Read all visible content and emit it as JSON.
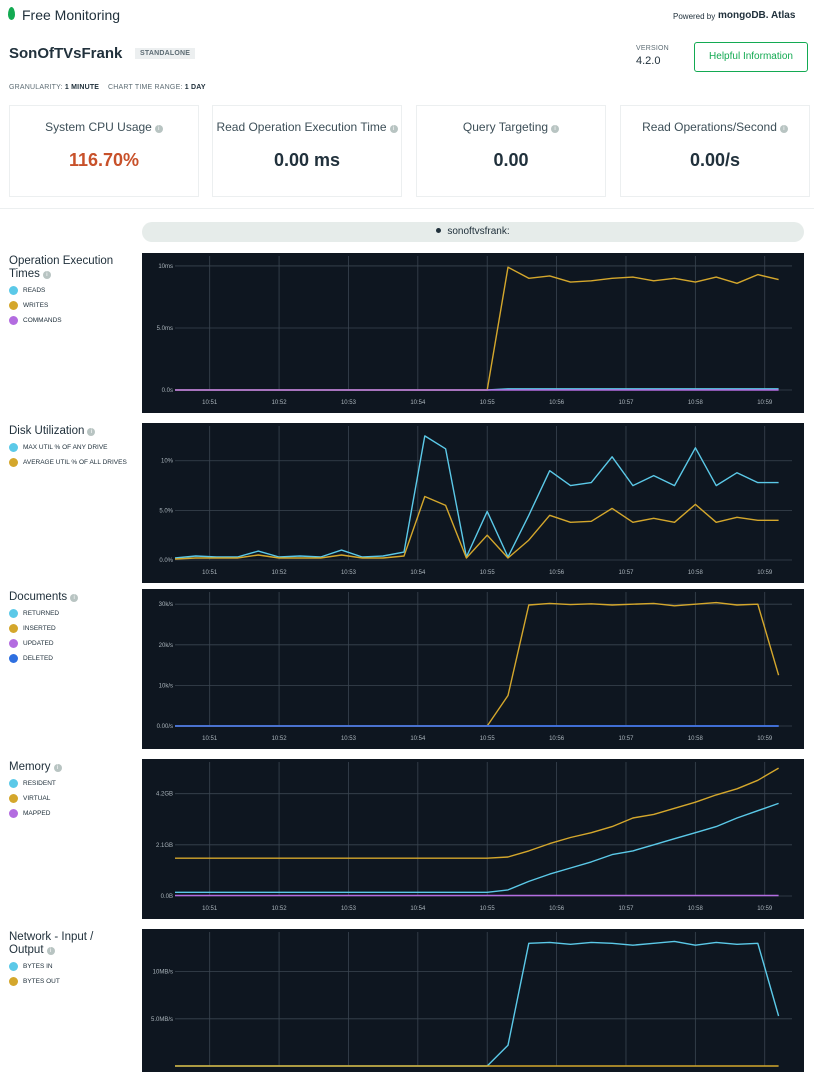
{
  "header": {
    "app": "Free Monitoring",
    "powered_by": "Powered by",
    "brand": "mongoDB. Atlas",
    "host": "SonOfTVsFrank",
    "badge": "STANDALONE",
    "version_label": "VERSION",
    "version": "4.2.0",
    "button": "Helpful Information",
    "granularity_label": "GRANULARITY:",
    "granularity": "1 MINUTE",
    "range_label": "CHART TIME RANGE:",
    "range": "1 DAY"
  },
  "metrics": [
    {
      "label": "System CPU Usage",
      "value": "116.70%"
    },
    {
      "label": "Read Operation Execution Time",
      "value": "0.00 ms"
    },
    {
      "label": "Query Targeting",
      "value": "0.00"
    },
    {
      "label": "Read Operations/Second",
      "value": "0.00/s"
    }
  ],
  "host_bar": "sonoftvsfrank:",
  "chart_data": [
    {
      "type": "line",
      "title": "Operation Execution Times",
      "x": [
        50.5,
        50.8,
        51.1,
        51.4,
        51.7,
        52.0,
        52.3,
        52.6,
        52.9,
        53.2,
        53.5,
        53.8,
        54.1,
        54.4,
        54.7,
        55.0,
        55.3,
        55.6,
        55.9,
        56.2,
        56.5,
        56.8,
        57.1,
        57.4,
        57.7,
        58.0,
        58.3,
        58.6,
        58.9,
        59.2
      ],
      "xlim": [
        50.5,
        59.22
      ],
      "xticks": [
        {
          "value": 51,
          "label": "10:51"
        },
        {
          "value": 52,
          "label": "10:52"
        },
        {
          "value": 53,
          "label": "10:53"
        },
        {
          "value": 54,
          "label": "10:54"
        },
        {
          "value": 55,
          "label": "10:55"
        },
        {
          "value": 56,
          "label": "10:56"
        },
        {
          "value": 57,
          "label": "10:57"
        },
        {
          "value": 58,
          "label": "10:58"
        },
        {
          "value": 59,
          "label": "10:59"
        }
      ],
      "ylim": [
        0,
        10.8
      ],
      "yticks": [
        {
          "value": 0,
          "label": "0.0s"
        },
        {
          "value": 5,
          "label": "5.0ms"
        },
        {
          "value": 10,
          "label": "10ms"
        }
      ],
      "grid": true,
      "series": [
        {
          "name": "READS",
          "color": "#5bc9e8",
          "values": [
            0,
            0,
            0,
            0,
            0,
            0,
            0,
            0,
            0,
            0,
            0,
            0,
            0,
            0,
            0,
            0,
            0.1,
            0.1,
            0.1,
            0.1,
            0.1,
            0.1,
            0.1,
            0.1,
            0.1,
            0.1,
            0.1,
            0.1,
            0.1,
            0.1
          ]
        },
        {
          "name": "WRITES",
          "color": "#d4a72c",
          "values": [
            0,
            0,
            0,
            0,
            0,
            0,
            0,
            0,
            0,
            0,
            0,
            0,
            0,
            0,
            0,
            0,
            9.9,
            9.0,
            9.2,
            8.7,
            8.8,
            9.0,
            9.1,
            8.8,
            9.0,
            8.7,
            9.1,
            8.6,
            9.3,
            8.9
          ]
        },
        {
          "name": "COMMANDS",
          "color": "#b36ce0",
          "values": [
            0,
            0,
            0,
            0,
            0,
            0,
            0,
            0,
            0,
            0,
            0,
            0,
            0,
            0,
            0,
            0,
            0,
            0,
            0,
            0,
            0,
            0,
            0,
            0,
            0,
            0,
            0,
            0,
            0,
            0
          ]
        }
      ]
    },
    {
      "type": "line",
      "title": "Disk Utilization",
      "x": [
        50.5,
        50.8,
        51.1,
        51.4,
        51.7,
        52.0,
        52.3,
        52.6,
        52.9,
        53.2,
        53.5,
        53.8,
        54.1,
        54.4,
        54.7,
        55.0,
        55.3,
        55.6,
        55.9,
        56.2,
        56.5,
        56.8,
        57.1,
        57.4,
        57.7,
        58.0,
        58.3,
        58.6,
        58.9,
        59.2
      ],
      "xlim": [
        50.5,
        59.22
      ],
      "xticks": [
        {
          "value": 51,
          "label": "10:51"
        },
        {
          "value": 52,
          "label": "10:52"
        },
        {
          "value": 53,
          "label": "10:53"
        },
        {
          "value": 54,
          "label": "10:54"
        },
        {
          "value": 55,
          "label": "10:55"
        },
        {
          "value": 56,
          "label": "10:56"
        },
        {
          "value": 57,
          "label": "10:57"
        },
        {
          "value": 58,
          "label": "10:58"
        },
        {
          "value": 59,
          "label": "10:59"
        }
      ],
      "ylim": [
        0,
        13.5
      ],
      "yticks": [
        {
          "value": 0,
          "label": "0.0%"
        },
        {
          "value": 5,
          "label": "5.0%"
        },
        {
          "value": 10,
          "label": "10%"
        }
      ],
      "grid": true,
      "series": [
        {
          "name": "MAX UTIL % OF ANY DRIVE",
          "color": "#5bc9e8",
          "values": [
            0.2,
            0.4,
            0.3,
            0.3,
            0.9,
            0.3,
            0.4,
            0.3,
            1.0,
            0.3,
            0.4,
            0.8,
            12.5,
            11.2,
            0.3,
            4.9,
            0.3,
            4.5,
            9.0,
            7.5,
            7.8,
            10.4,
            7.5,
            8.5,
            7.5,
            11.3,
            7.5,
            8.8,
            7.8,
            7.8
          ]
        },
        {
          "name": "AVERAGE UTIL % OF ALL DRIVES",
          "color": "#d4a72c",
          "values": [
            0.1,
            0.2,
            0.2,
            0.2,
            0.5,
            0.2,
            0.2,
            0.2,
            0.5,
            0.2,
            0.2,
            0.4,
            6.4,
            5.5,
            0.2,
            2.5,
            0.2,
            2.0,
            4.5,
            3.8,
            3.9,
            5.2,
            3.8,
            4.2,
            3.8,
            5.6,
            3.8,
            4.3,
            4.0,
            4.0
          ]
        }
      ]
    },
    {
      "type": "line",
      "title": "Documents",
      "x": [
        50.5,
        50.8,
        51.1,
        51.4,
        51.7,
        52.0,
        52.3,
        52.6,
        52.9,
        53.2,
        53.5,
        53.8,
        54.1,
        54.4,
        54.7,
        55.0,
        55.3,
        55.6,
        55.9,
        56.2,
        56.5,
        56.8,
        57.1,
        57.4,
        57.7,
        58.0,
        58.3,
        58.6,
        58.9,
        59.2
      ],
      "xlim": [
        50.5,
        59.22
      ],
      "xticks": [
        {
          "value": 51,
          "label": "10:51"
        },
        {
          "value": 52,
          "label": "10:52"
        },
        {
          "value": 53,
          "label": "10:53"
        },
        {
          "value": 54,
          "label": "10:54"
        },
        {
          "value": 55,
          "label": "10:55"
        },
        {
          "value": 56,
          "label": "10:56"
        },
        {
          "value": 57,
          "label": "10:57"
        },
        {
          "value": 58,
          "label": "10:58"
        },
        {
          "value": 59,
          "label": "10:59"
        }
      ],
      "ylim": [
        0,
        33000
      ],
      "yticks": [
        {
          "value": 0,
          "label": "0.00/s"
        },
        {
          "value": 10000,
          "label": "10k/s"
        },
        {
          "value": 20000,
          "label": "20k/s"
        },
        {
          "value": 30000,
          "label": "30k/s"
        }
      ],
      "grid": true,
      "series": [
        {
          "name": "RETURNED",
          "color": "#5bc9e8",
          "values": [
            0,
            0,
            0,
            0,
            0,
            0,
            0,
            0,
            0,
            0,
            0,
            0,
            0,
            0,
            0,
            0,
            0,
            0,
            0,
            0,
            0,
            0,
            0,
            0,
            0,
            0,
            0,
            0,
            0,
            0
          ]
        },
        {
          "name": "INSERTED",
          "color": "#d4a72c",
          "values": [
            0,
            0,
            0,
            0,
            0,
            0,
            0,
            0,
            0,
            0,
            0,
            0,
            0,
            0,
            0,
            0,
            7500,
            29800,
            30200,
            29900,
            30100,
            29800,
            30000,
            30200,
            29600,
            30000,
            30400,
            29800,
            30000,
            12500
          ]
        },
        {
          "name": "UPDATED",
          "color": "#b36ce0",
          "values": [
            0,
            0,
            0,
            0,
            0,
            0,
            0,
            0,
            0,
            0,
            0,
            0,
            0,
            0,
            0,
            0,
            0,
            0,
            0,
            0,
            0,
            0,
            0,
            0,
            0,
            0,
            0,
            0,
            0,
            0
          ]
        },
        {
          "name": "DELETED",
          "color": "#2e6fe0",
          "values": [
            0,
            0,
            0,
            0,
            0,
            0,
            0,
            0,
            0,
            0,
            0,
            0,
            0,
            0,
            0,
            0,
            0,
            0,
            0,
            0,
            0,
            0,
            0,
            0,
            0,
            0,
            0,
            0,
            0,
            0
          ]
        }
      ]
    },
    {
      "type": "line",
      "title": "Memory",
      "x": [
        50.5,
        50.8,
        51.1,
        51.4,
        51.7,
        52.0,
        52.3,
        52.6,
        52.9,
        53.2,
        53.5,
        53.8,
        54.1,
        54.4,
        54.7,
        55.0,
        55.3,
        55.6,
        55.9,
        56.2,
        56.5,
        56.8,
        57.1,
        57.4,
        57.7,
        58.0,
        58.3,
        58.6,
        58.9,
        59.2
      ],
      "xlim": [
        50.5,
        59.22
      ],
      "xticks": [
        {
          "value": 51,
          "label": "10:51"
        },
        {
          "value": 52,
          "label": "10:52"
        },
        {
          "value": 53,
          "label": "10:53"
        },
        {
          "value": 54,
          "label": "10:54"
        },
        {
          "value": 55,
          "label": "10:55"
        },
        {
          "value": 56,
          "label": "10:56"
        },
        {
          "value": 57,
          "label": "10:57"
        },
        {
          "value": 58,
          "label": "10:58"
        },
        {
          "value": 59,
          "label": "10:59"
        }
      ],
      "ylim": [
        0,
        5.5
      ],
      "yticks": [
        {
          "value": 0,
          "label": "0.0B"
        },
        {
          "value": 2.1,
          "label": "2.1GB"
        },
        {
          "value": 4.2,
          "label": "4.2GB"
        }
      ],
      "grid": true,
      "series": [
        {
          "name": "RESIDENT",
          "color": "#5bc9e8",
          "values": [
            0.15,
            0.15,
            0.15,
            0.15,
            0.15,
            0.15,
            0.15,
            0.15,
            0.15,
            0.15,
            0.15,
            0.15,
            0.15,
            0.15,
            0.15,
            0.15,
            0.25,
            0.6,
            0.9,
            1.15,
            1.4,
            1.7,
            1.85,
            2.1,
            2.35,
            2.6,
            2.85,
            3.2,
            3.5,
            3.8
          ]
        },
        {
          "name": "VIRTUAL",
          "color": "#d4a72c",
          "values": [
            1.55,
            1.55,
            1.55,
            1.55,
            1.55,
            1.55,
            1.55,
            1.55,
            1.55,
            1.55,
            1.55,
            1.55,
            1.55,
            1.55,
            1.55,
            1.55,
            1.6,
            1.85,
            2.15,
            2.4,
            2.6,
            2.85,
            3.2,
            3.35,
            3.6,
            3.85,
            4.15,
            4.4,
            4.75,
            5.25
          ]
        },
        {
          "name": "MAPPED",
          "color": "#b36ce0",
          "values": [
            0.02,
            0.02,
            0.02,
            0.02,
            0.02,
            0.02,
            0.02,
            0.02,
            0.02,
            0.02,
            0.02,
            0.02,
            0.02,
            0.02,
            0.02,
            0.02,
            0.02,
            0.02,
            0.02,
            0.02,
            0.02,
            0.02,
            0.02,
            0.02,
            0.02,
            0.02,
            0.02,
            0.02,
            0.02,
            0.02
          ]
        }
      ]
    },
    {
      "type": "line",
      "title": "Network - Input / Output",
      "x": [
        50.5,
        50.8,
        51.1,
        51.4,
        51.7,
        52.0,
        52.3,
        52.6,
        52.9,
        53.2,
        53.5,
        53.8,
        54.1,
        54.4,
        54.7,
        55.0,
        55.3,
        55.6,
        55.9,
        56.2,
        56.5,
        56.8,
        57.1,
        57.4,
        57.7,
        58.0,
        58.3,
        58.6,
        58.9,
        59.2
      ],
      "xlim": [
        50.5,
        59.22
      ],
      "xticks": [
        51,
        52,
        53,
        54,
        55,
        56,
        57,
        58,
        59
      ],
      "ylim": [
        0,
        14.2
      ],
      "yticks": [
        {
          "value": 5,
          "label": "5.0MB/s"
        },
        {
          "value": 10,
          "label": "10MB/s"
        }
      ],
      "grid": true,
      "series": [
        {
          "name": "BYTES IN",
          "color": "#5bc9e8",
          "values": [
            0,
            0,
            0,
            0,
            0,
            0,
            0,
            0,
            0,
            0,
            0,
            0,
            0,
            0,
            0,
            0,
            2.2,
            13.0,
            13.1,
            12.9,
            13.1,
            13.0,
            12.8,
            13.0,
            13.2,
            12.8,
            13.1,
            12.9,
            13.0,
            5.3
          ]
        },
        {
          "name": "BYTES OUT",
          "color": "#d4a72c",
          "values": [
            0,
            0,
            0,
            0,
            0,
            0,
            0,
            0,
            0,
            0,
            0,
            0,
            0,
            0,
            0,
            0,
            0,
            0,
            0,
            0,
            0,
            0,
            0,
            0,
            0,
            0,
            0,
            0,
            0,
            0
          ]
        }
      ]
    }
  ]
}
